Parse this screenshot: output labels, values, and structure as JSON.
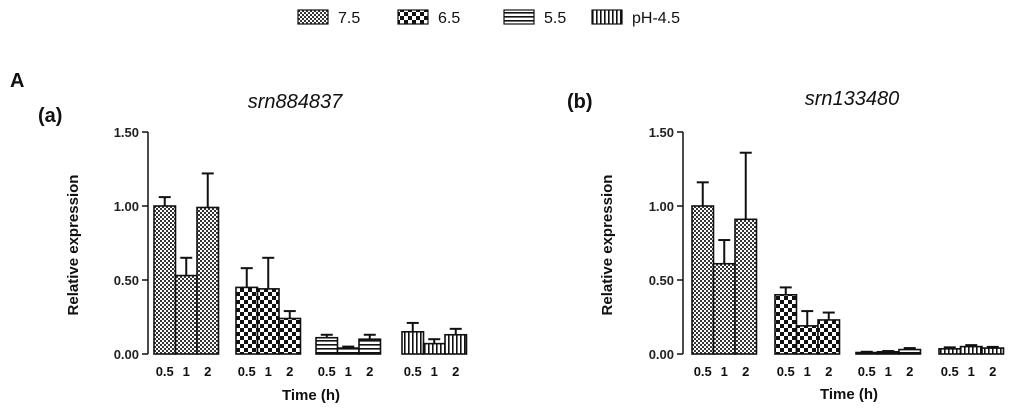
{
  "figure_label": "A",
  "legend": [
    {
      "label": "7.5",
      "pattern": "fine-check"
    },
    {
      "label": "6.5",
      "pattern": "coarse-check"
    },
    {
      "label": "5.5",
      "pattern": "horizontal"
    },
    {
      "label": "pH-4.5",
      "pattern": "vertical"
    }
  ],
  "chart_data": [
    {
      "panel": "(a)",
      "type": "bar",
      "title": "srn884837",
      "xlabel": "Time (h)",
      "ylabel": "Relative expression",
      "ylim": [
        0,
        1.5
      ],
      "yticks": [
        "0.00",
        "0.50",
        "1.00",
        "1.50"
      ],
      "categories": [
        "0.5",
        "1",
        "2"
      ],
      "series": [
        {
          "name": "7.5",
          "pattern": "fine-check",
          "values": [
            1.0,
            0.53,
            0.99
          ],
          "errors": [
            0.06,
            0.12,
            0.23
          ]
        },
        {
          "name": "6.5",
          "pattern": "coarse-check",
          "values": [
            0.45,
            0.44,
            0.24
          ],
          "errors": [
            0.13,
            0.21,
            0.05
          ]
        },
        {
          "name": "5.5",
          "pattern": "horizontal",
          "values": [
            0.11,
            0.04,
            0.1
          ],
          "errors": [
            0.02,
            0.01,
            0.03
          ]
        },
        {
          "name": "pH-4.5",
          "pattern": "vertical",
          "values": [
            0.15,
            0.07,
            0.13
          ],
          "errors": [
            0.06,
            0.03,
            0.04
          ]
        }
      ]
    },
    {
      "panel": "(b)",
      "type": "bar",
      "title": "srn133480",
      "xlabel": "Time (h)",
      "ylabel": "Relative expression",
      "ylim": [
        0,
        1.5
      ],
      "yticks": [
        "0.00",
        "0.50",
        "1.00",
        "1.50"
      ],
      "categories": [
        "0.5",
        "1",
        "2"
      ],
      "series": [
        {
          "name": "7.5",
          "pattern": "fine-check",
          "values": [
            1.0,
            0.61,
            0.91
          ],
          "errors": [
            0.16,
            0.16,
            0.45
          ]
        },
        {
          "name": "6.5",
          "pattern": "coarse-check",
          "values": [
            0.4,
            0.19,
            0.23
          ],
          "errors": [
            0.05,
            0.1,
            0.05
          ]
        },
        {
          "name": "5.5",
          "pattern": "horizontal",
          "values": [
            0.01,
            0.015,
            0.03
          ],
          "errors": [
            0.005,
            0.005,
            0.01
          ]
        },
        {
          "name": "pH-4.5",
          "pattern": "vertical",
          "values": [
            0.035,
            0.05,
            0.04
          ],
          "errors": [
            0.01,
            0.01,
            0.008
          ]
        }
      ]
    }
  ]
}
